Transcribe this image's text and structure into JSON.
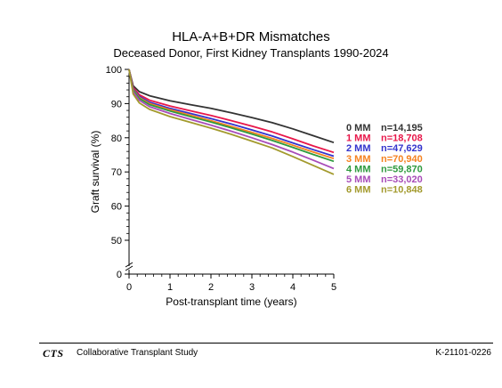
{
  "chart_data": {
    "type": "line",
    "title": "HLA-A+B+DR Mismatches",
    "subtitle": "Deceased Donor, First Kidney Transplants 1990-2024",
    "xlabel": "Post-transplant time (years)",
    "ylabel": "Graft survival (%)",
    "xlim": [
      0,
      5
    ],
    "ylim": [
      0,
      100
    ],
    "y_axis_break": true,
    "xticks": [
      "0",
      "1",
      "2",
      "3",
      "4",
      "5"
    ],
    "yticks": [
      "0",
      "50",
      "60",
      "70",
      "80",
      "90",
      "100"
    ],
    "grid": false,
    "legend_placement": "right",
    "x": [
      0,
      0.1,
      0.25,
      0.5,
      1,
      1.5,
      2,
      2.5,
      3,
      3.5,
      4,
      4.5,
      5
    ],
    "series": [
      {
        "name": "0 MM",
        "n_label": "n=14,195",
        "color": "#333333",
        "values": [
          100,
          95.2,
          93.5,
          92.3,
          90.8,
          89.7,
          88.6,
          87.3,
          85.9,
          84.4,
          82.6,
          80.6,
          78.6
        ]
      },
      {
        "name": "1 MM",
        "n_label": "n=18,708",
        "color": "#e8174a",
        "values": [
          100,
          94.7,
          92.6,
          91.0,
          89.3,
          87.9,
          86.5,
          85.0,
          83.4,
          81.7,
          79.7,
          77.6,
          75.7
        ]
      },
      {
        "name": "2 MM",
        "n_label": "n=47,629",
        "color": "#3333cc",
        "values": [
          100,
          94.3,
          92.1,
          90.4,
          88.6,
          87.1,
          85.6,
          84.0,
          82.3,
          80.5,
          78.5,
          76.5,
          74.6
        ]
      },
      {
        "name": "3 MM",
        "n_label": "n=70,940",
        "color": "#f58220",
        "values": [
          100,
          94.1,
          91.8,
          90.0,
          88.2,
          86.6,
          85.0,
          83.3,
          81.6,
          79.8,
          77.8,
          75.8,
          73.9
        ]
      },
      {
        "name": "4 MM",
        "n_label": "n=59,870",
        "color": "#2e9a3e",
        "values": [
          100,
          93.9,
          91.5,
          89.7,
          87.8,
          86.2,
          84.6,
          82.9,
          81.1,
          79.2,
          77.2,
          75.1,
          73.1
        ]
      },
      {
        "name": "5 MM",
        "n_label": "n=33,020",
        "color": "#a84cb8",
        "values": [
          100,
          93.5,
          91.0,
          89.1,
          87.1,
          85.4,
          83.7,
          81.9,
          80.0,
          78.0,
          75.8,
          73.4,
          71.0
        ]
      },
      {
        "name": "6 MM",
        "n_label": "n=10,848",
        "color": "#a39a2d",
        "values": [
          100,
          92.8,
          90.2,
          88.3,
          86.2,
          84.5,
          82.8,
          81.0,
          79.0,
          77.0,
          74.5,
          71.9,
          69.3
        ]
      }
    ]
  },
  "footer": {
    "logo_text": "CTS",
    "organization": "Collaborative Transplant Study",
    "code": "K-21101-0226"
  }
}
